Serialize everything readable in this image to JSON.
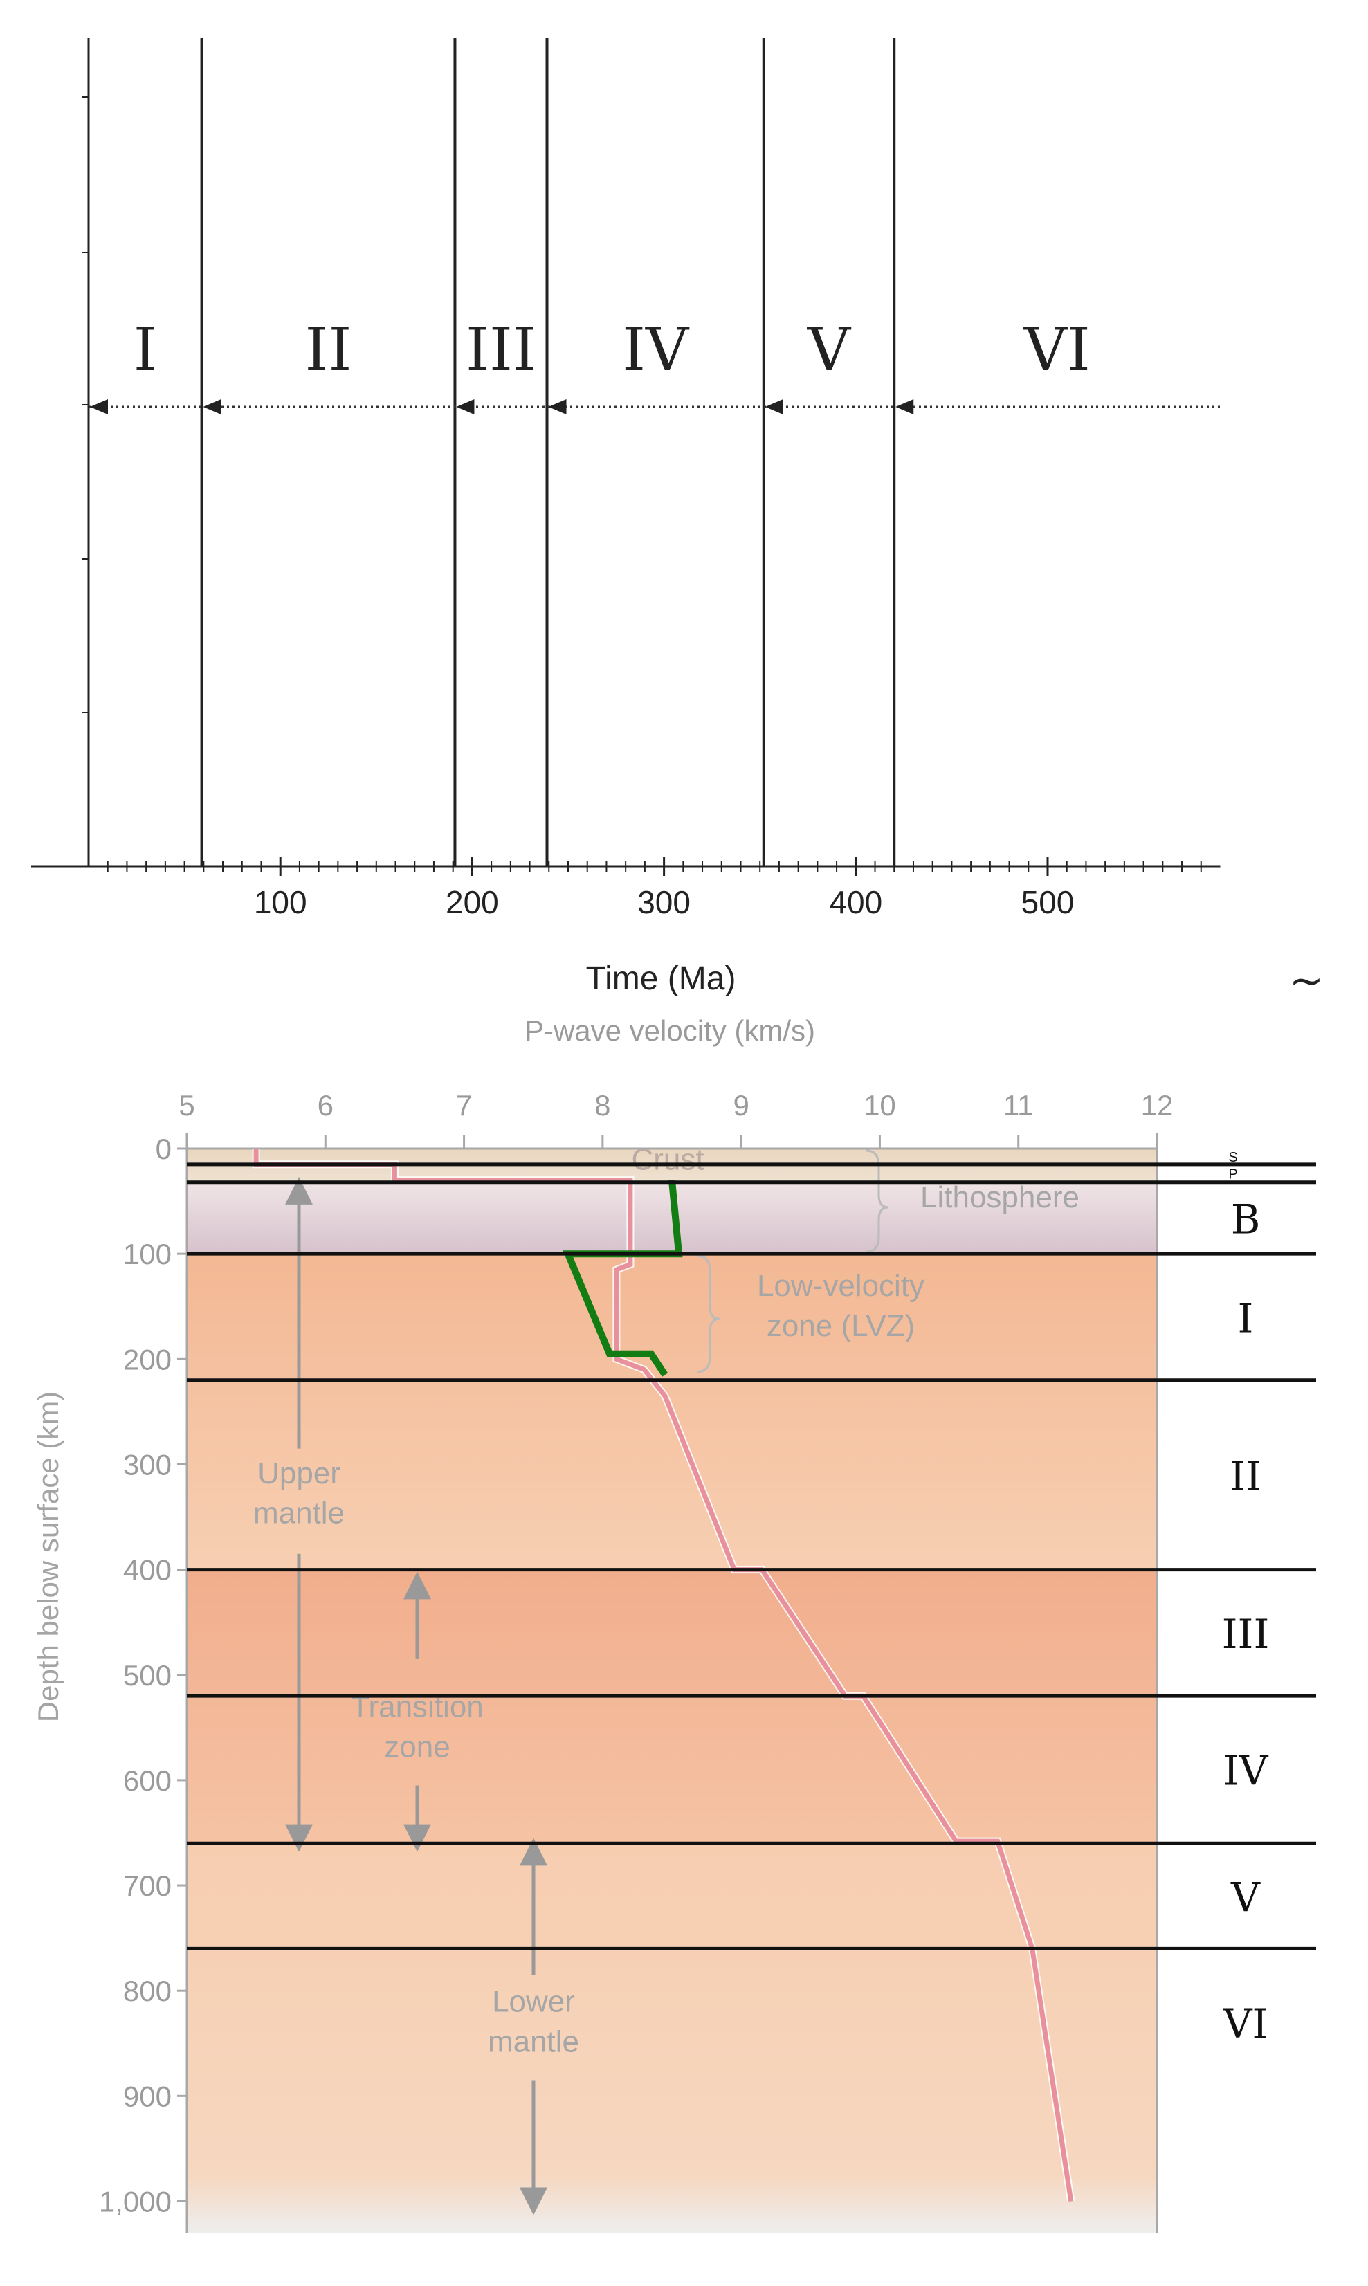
{
  "chart_data": [
    {
      "type": "timeline",
      "xlabel": "Time (Ma)",
      "xlim": [
        0,
        590
      ],
      "x_ticks": [
        100,
        200,
        300,
        400,
        500
      ],
      "boundaries": [
        59,
        191,
        239,
        352,
        420
      ],
      "intervals": [
        {
          "label": "I",
          "start": 0,
          "end": 59
        },
        {
          "label": "II",
          "start": 59,
          "end": 191
        },
        {
          "label": "III",
          "start": 191,
          "end": 239
        },
        {
          "label": "IV",
          "start": 239,
          "end": 352
        },
        {
          "label": "V",
          "start": 352,
          "end": 420
        },
        {
          "label": "VI",
          "start": 420,
          "end": 590
        }
      ],
      "grid": false
    },
    {
      "type": "line",
      "title": "P-wave velocity (km/s)",
      "ylabel": "Depth below surface (km)",
      "xlim": [
        5,
        12
      ],
      "ylim": [
        0,
        1030
      ],
      "x_ticks": [
        "5",
        "6",
        "7",
        "8",
        "9",
        "10",
        "11",
        "12"
      ],
      "y_ticks": [
        "0",
        "100",
        "200",
        "300",
        "400",
        "500",
        "600",
        "700",
        "800",
        "900",
        "1,000"
      ],
      "series": [
        {
          "role": "reference-profile",
          "color": "#e8909c",
          "x": [
            5.5,
            5.5,
            6.5,
            6.5,
            8.2,
            8.2,
            8.1,
            8.1,
            8.3,
            8.45,
            8.95,
            9.15,
            9.75,
            9.88,
            10.55,
            10.85,
            11.1,
            11.38
          ],
          "y": [
            0,
            15,
            15,
            30,
            30,
            110,
            115,
            200,
            210,
            235,
            400,
            400,
            520,
            520,
            658,
            658,
            760,
            1000
          ]
        },
        {
          "role": "drawn-profile",
          "color": "#137c13",
          "x": [
            8.5,
            8.55,
            7.75,
            8.05,
            8.35,
            8.45
          ],
          "y": [
            30,
            100,
            100,
            195,
            195,
            215
          ]
        }
      ],
      "text_labels": {
        "crust": "Crust",
        "lithosphere": "Lithosphere",
        "lvz_line1": "Low-velocity",
        "lvz_line2": "zone (LVZ)",
        "upper_mantle_line1": "Upper",
        "upper_mantle_line2": "mantle",
        "transition_line1": "Transition",
        "transition_line2": "zone",
        "lower_mantle_line1": "Lower",
        "lower_mantle_line2": "mantle"
      },
      "layer_boundaries_km": [
        15,
        32,
        100,
        220,
        400,
        520,
        660,
        760
      ],
      "layer_labels": [
        {
          "label": "S",
          "depth": 8
        },
        {
          "label": "P",
          "depth": 24
        },
        {
          "label": "B",
          "depth": 66
        },
        {
          "label": "I",
          "depth": 160
        },
        {
          "label": "II",
          "depth": 310
        },
        {
          "label": "III",
          "depth": 460
        },
        {
          "label": "IV",
          "depth": 590
        },
        {
          "label": "V",
          "depth": 710
        },
        {
          "label": "VI",
          "depth": 830
        }
      ],
      "side_mark": "~",
      "colors": {
        "lithosphere": "#e3d2d8",
        "mantle_light": "#f6ceb1",
        "mantle_dark": "#f2b394",
        "bottom": "#ececec"
      }
    }
  ]
}
